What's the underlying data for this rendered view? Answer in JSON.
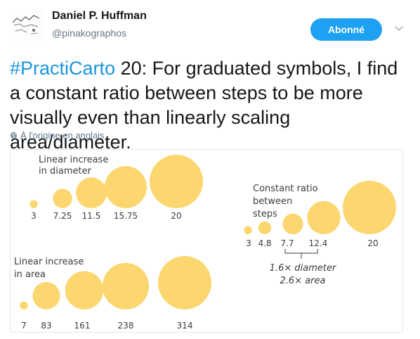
{
  "author": {
    "display_name": "Daniel P. Huffman",
    "handle": "@pinakographos"
  },
  "follow_label": "Abonné",
  "tweet": {
    "hashtag": "#PractiCarto",
    "body": " 20: For graduated symbols, I find a constant ratio between steps to be more visually even than linearly scaling area/diameter."
  },
  "translate_label": "À l'origine en anglais",
  "colors": {
    "accent": "#1da1f2",
    "hashtag": "#1b95e0",
    "symbol": "#fcd770"
  },
  "figure": {
    "groups": [
      {
        "id": "diameter",
        "title_lines": [
          "Linear increase",
          "in diameter"
        ],
        "labels": [
          "3",
          "7.25",
          "11.5",
          "15.75",
          "20"
        ],
        "values": [
          3,
          7.25,
          11.5,
          15.75,
          20
        ]
      },
      {
        "id": "ratio",
        "title_lines": [
          "Constant ratio",
          "between",
          "steps"
        ],
        "labels": [
          "3",
          "4.8",
          "7.7",
          "12.4",
          "20"
        ],
        "values": [
          3,
          4.8,
          7.7,
          12.4,
          20
        ],
        "note_lines": [
          "1.6× diameter",
          "2.6× area"
        ]
      },
      {
        "id": "area",
        "title_lines": [
          "Linear increase",
          "in area"
        ],
        "labels": [
          "7",
          "83",
          "161",
          "238",
          "314"
        ],
        "values": [
          7,
          83,
          161,
          238,
          314
        ]
      }
    ]
  }
}
